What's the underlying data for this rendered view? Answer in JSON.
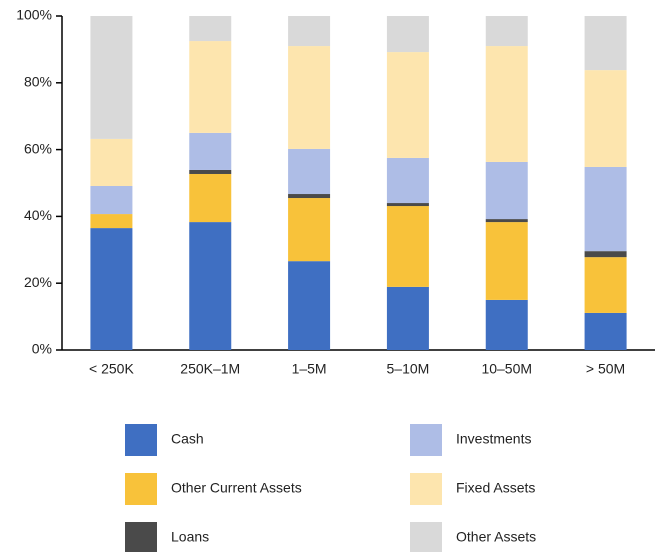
{
  "chart_data": {
    "type": "stacked_bar",
    "categories": [
      "< 250K",
      "250K–1M",
      "1–5M",
      "5–10M",
      "10–50M",
      "> 50M"
    ],
    "series": [
      {
        "name": "Cash",
        "color": "#3f6fc2",
        "values": [
          36.5,
          38.3,
          26.6,
          18.9,
          15,
          11.1
        ]
      },
      {
        "name": "Other Current Assets",
        "color": "#f8c23a",
        "values": [
          4.2,
          14.4,
          18.9,
          24.2,
          23.3,
          16.7
        ]
      },
      {
        "name": "Loans",
        "color": "#4a4a4a",
        "values": [
          0,
          1.2,
          1.2,
          0.9,
          0.9,
          1.8
        ]
      },
      {
        "name": "Investments",
        "color": "#aebde6",
        "values": [
          8.4,
          11.1,
          13.5,
          13.5,
          17.1,
          25.2
        ]
      },
      {
        "name": "Fixed Assets",
        "color": "#fde5ae",
        "values": [
          14.1,
          27.5,
          30.8,
          31.7,
          34.7,
          29
        ]
      },
      {
        "name": "Other Assets",
        "color": "#d9d9d9",
        "values": [
          36.8,
          7.5,
          9,
          10.8,
          9,
          16.2
        ]
      }
    ],
    "ylim": [
      0,
      100
    ],
    "yticks": [
      {
        "value": 0,
        "label": "0%"
      },
      {
        "value": 20,
        "label": "20%"
      },
      {
        "value": 40,
        "label": "40%"
      },
      {
        "value": 60,
        "label": "60%"
      },
      {
        "value": 80,
        "label": "80%"
      },
      {
        "value": 100,
        "label": "100%"
      }
    ]
  }
}
